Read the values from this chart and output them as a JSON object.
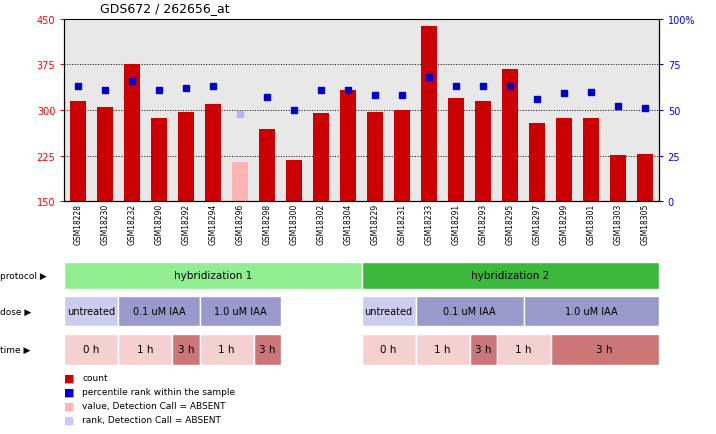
{
  "title": "GDS672 / 262656_at",
  "samples": [
    "GSM18228",
    "GSM18230",
    "GSM18232",
    "GSM18290",
    "GSM18292",
    "GSM18294",
    "GSM18296",
    "GSM18298",
    "GSM18300",
    "GSM18302",
    "GSM18304",
    "GSM18229",
    "GSM18231",
    "GSM18233",
    "GSM18291",
    "GSM18293",
    "GSM18295",
    "GSM18297",
    "GSM18299",
    "GSM18301",
    "GSM18303",
    "GSM18305"
  ],
  "bar_values": [
    315,
    305,
    375,
    287,
    297,
    310,
    215,
    268,
    217,
    295,
    332,
    297,
    300,
    438,
    320,
    315,
    368,
    278,
    287,
    287,
    226,
    227
  ],
  "bar_absent": [
    false,
    false,
    false,
    false,
    false,
    false,
    true,
    false,
    false,
    false,
    false,
    false,
    false,
    false,
    false,
    false,
    false,
    false,
    false,
    false,
    false,
    false
  ],
  "percentile_values": [
    63,
    61,
    66,
    61,
    62,
    63,
    48,
    57,
    50,
    61,
    61,
    58,
    58,
    68,
    63,
    63,
    63,
    56,
    59,
    60,
    52,
    51
  ],
  "percentile_absent": [
    false,
    false,
    false,
    false,
    false,
    false,
    true,
    false,
    false,
    false,
    false,
    false,
    false,
    false,
    false,
    false,
    false,
    false,
    false,
    false,
    false,
    false
  ],
  "bar_color": "#cc0000",
  "bar_absent_color": "#ffb3b3",
  "dot_color": "#0000cc",
  "dot_absent_color": "#b3b3ff",
  "ylim_left": [
    150,
    450
  ],
  "ylim_right": [
    0,
    100
  ],
  "yticks_left": [
    150,
    225,
    300,
    375,
    450
  ],
  "yticks_right": [
    0,
    25,
    50,
    75,
    100
  ],
  "bg_color": "#e8e8e8",
  "protocol_labels": [
    "hybridization 1",
    "hybridization 2"
  ],
  "protocol_color1": "#90ee90",
  "protocol_color2": "#3cb83c",
  "dose_spans": [
    {
      "label": "untreated",
      "start": 0,
      "end": 2,
      "color": "#ccccee"
    },
    {
      "label": "0.1 uM IAA",
      "start": 2,
      "end": 5,
      "color": "#9999cc"
    },
    {
      "label": "1.0 uM IAA",
      "start": 5,
      "end": 8,
      "color": "#9999cc"
    },
    {
      "label": "untreated",
      "start": 11,
      "end": 13,
      "color": "#ccccee"
    },
    {
      "label": "0.1 uM IAA",
      "start": 13,
      "end": 17,
      "color": "#9999cc"
    },
    {
      "label": "1.0 uM IAA",
      "start": 17,
      "end": 22,
      "color": "#9999cc"
    }
  ],
  "time_spans": [
    {
      "label": "0 h",
      "start": 0,
      "end": 2,
      "color": "#f5d0d0"
    },
    {
      "label": "1 h",
      "start": 2,
      "end": 4,
      "color": "#f5d0d0"
    },
    {
      "label": "3 h",
      "start": 4,
      "end": 5,
      "color": "#cc7777"
    },
    {
      "label": "1 h",
      "start": 5,
      "end": 7,
      "color": "#f5d0d0"
    },
    {
      "label": "3 h",
      "start": 7,
      "end": 8,
      "color": "#cc7777"
    },
    {
      "label": "0 h",
      "start": 11,
      "end": 13,
      "color": "#f5d0d0"
    },
    {
      "label": "1 h",
      "start": 13,
      "end": 15,
      "color": "#f5d0d0"
    },
    {
      "label": "3 h",
      "start": 15,
      "end": 16,
      "color": "#cc7777"
    },
    {
      "label": "1 h",
      "start": 16,
      "end": 18,
      "color": "#f5d0d0"
    },
    {
      "label": "3 h",
      "start": 18,
      "end": 22,
      "color": "#cc7777"
    }
  ],
  "legend_items": [
    {
      "color": "#cc0000",
      "label": "count"
    },
    {
      "color": "#0000cc",
      "label": "percentile rank within the sample"
    },
    {
      "color": "#ffb3b3",
      "label": "value, Detection Call = ABSENT"
    },
    {
      "color": "#c8c8ff",
      "label": "rank, Detection Call = ABSENT"
    }
  ]
}
